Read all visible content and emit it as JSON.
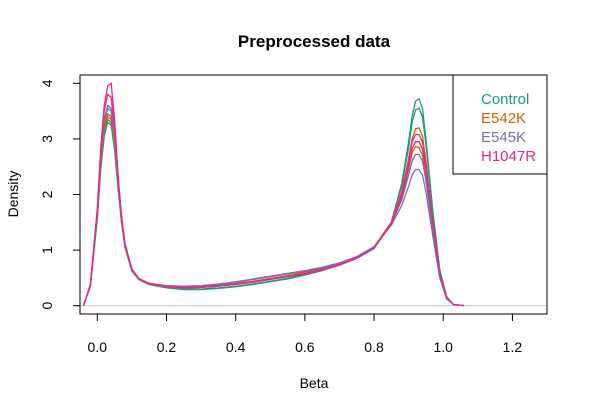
{
  "chart_data": {
    "type": "line",
    "title": "Preprocessed data",
    "xlabel": "Beta",
    "ylabel": "Density",
    "xlim": [
      -0.05,
      1.3
    ],
    "ylim": [
      -0.15,
      4.15
    ],
    "xticks": [
      0.0,
      0.2,
      0.4,
      0.6,
      0.8,
      1.0,
      1.2
    ],
    "xtick_labels": [
      "0.0",
      "0.2",
      "0.4",
      "0.6",
      "0.8",
      "1.0",
      "1.2"
    ],
    "yticks": [
      0,
      1,
      2,
      3,
      4
    ],
    "ytick_labels": [
      "0",
      "1",
      "2",
      "3",
      "4"
    ],
    "grid": false,
    "baseline": 0,
    "legend_position": "top-right",
    "legend": [
      {
        "label": "Control",
        "color": "#1B9E77"
      },
      {
        "label": "E542K",
        "color": "#D95F02"
      },
      {
        "label": "E545K",
        "color": "#7570B3"
      },
      {
        "label": "H1047R",
        "color": "#E7298A"
      }
    ],
    "x": [
      -0.04,
      -0.02,
      0.0,
      0.01,
      0.02,
      0.03,
      0.04,
      0.05,
      0.06,
      0.07,
      0.08,
      0.1,
      0.12,
      0.15,
      0.2,
      0.25,
      0.3,
      0.35,
      0.4,
      0.45,
      0.5,
      0.55,
      0.6,
      0.65,
      0.7,
      0.75,
      0.8,
      0.85,
      0.88,
      0.9,
      0.91,
      0.92,
      0.93,
      0.94,
      0.95,
      0.97,
      0.99,
      1.01,
      1.03,
      1.06
    ],
    "series": [
      {
        "color": "#1B9E77",
        "values": [
          0.0,
          0.35,
          1.55,
          2.45,
          3.05,
          3.3,
          3.25,
          2.8,
          2.1,
          1.5,
          1.05,
          0.62,
          0.47,
          0.38,
          0.32,
          0.29,
          0.29,
          0.31,
          0.34,
          0.38,
          0.43,
          0.48,
          0.55,
          0.63,
          0.73,
          0.85,
          1.03,
          1.5,
          2.2,
          2.95,
          3.4,
          3.68,
          3.72,
          3.55,
          3.0,
          1.7,
          0.65,
          0.16,
          0.02,
          0.0
        ]
      },
      {
        "color": "#1B9E77",
        "values": [
          0.0,
          0.35,
          1.6,
          2.5,
          3.1,
          3.35,
          3.3,
          2.85,
          2.15,
          1.52,
          1.06,
          0.63,
          0.47,
          0.38,
          0.33,
          0.3,
          0.3,
          0.32,
          0.35,
          0.39,
          0.44,
          0.49,
          0.56,
          0.64,
          0.74,
          0.86,
          1.04,
          1.5,
          2.15,
          2.85,
          3.3,
          3.52,
          3.55,
          3.4,
          2.9,
          1.65,
          0.63,
          0.15,
          0.02,
          0.0
        ]
      },
      {
        "color": "#D95F02",
        "values": [
          0.0,
          0.36,
          1.65,
          2.6,
          3.2,
          3.45,
          3.4,
          2.95,
          2.2,
          1.55,
          1.08,
          0.64,
          0.48,
          0.39,
          0.34,
          0.32,
          0.33,
          0.36,
          0.4,
          0.44,
          0.49,
          0.54,
          0.6,
          0.67,
          0.76,
          0.88,
          1.06,
          1.5,
          2.05,
          2.65,
          3.0,
          3.18,
          3.2,
          3.05,
          2.6,
          1.5,
          0.58,
          0.14,
          0.02,
          0.0
        ]
      },
      {
        "color": "#D95F02",
        "values": [
          0.0,
          0.36,
          1.6,
          2.55,
          3.15,
          3.4,
          3.35,
          2.9,
          2.18,
          1.53,
          1.07,
          0.63,
          0.47,
          0.39,
          0.34,
          0.32,
          0.33,
          0.35,
          0.39,
          0.43,
          0.48,
          0.53,
          0.59,
          0.66,
          0.75,
          0.87,
          1.05,
          1.48,
          1.95,
          2.45,
          2.75,
          2.86,
          2.85,
          2.7,
          2.3,
          1.35,
          0.53,
          0.13,
          0.02,
          0.0
        ]
      },
      {
        "color": "#7570B3",
        "values": [
          0.0,
          0.37,
          1.7,
          2.7,
          3.35,
          3.6,
          3.55,
          3.05,
          2.25,
          1.58,
          1.1,
          0.65,
          0.49,
          0.4,
          0.36,
          0.35,
          0.36,
          0.39,
          0.43,
          0.48,
          0.53,
          0.58,
          0.63,
          0.69,
          0.77,
          0.88,
          1.06,
          1.45,
          1.8,
          2.15,
          2.35,
          2.45,
          2.45,
          2.35,
          2.05,
          1.25,
          0.5,
          0.12,
          0.02,
          0.0
        ]
      },
      {
        "color": "#7570B3",
        "values": [
          0.0,
          0.36,
          1.65,
          2.65,
          3.3,
          3.55,
          3.5,
          3.0,
          2.22,
          1.56,
          1.09,
          0.64,
          0.48,
          0.4,
          0.35,
          0.34,
          0.35,
          0.38,
          0.42,
          0.47,
          0.52,
          0.57,
          0.62,
          0.68,
          0.76,
          0.87,
          1.05,
          1.47,
          1.9,
          2.35,
          2.6,
          2.72,
          2.72,
          2.6,
          2.25,
          1.35,
          0.53,
          0.13,
          0.02,
          0.0
        ]
      },
      {
        "color": "#E7298A",
        "values": [
          0.0,
          0.38,
          1.75,
          2.85,
          3.6,
          3.95,
          4.0,
          3.35,
          2.35,
          1.62,
          1.12,
          0.66,
          0.49,
          0.4,
          0.35,
          0.33,
          0.34,
          0.36,
          0.39,
          0.43,
          0.48,
          0.52,
          0.58,
          0.65,
          0.74,
          0.86,
          1.04,
          1.48,
          2.0,
          2.6,
          2.95,
          3.08,
          3.08,
          2.95,
          2.55,
          1.5,
          0.58,
          0.14,
          0.02,
          0.0
        ]
      },
      {
        "color": "#E7298A",
        "values": [
          0.0,
          0.37,
          1.72,
          2.8,
          3.5,
          3.8,
          3.75,
          3.2,
          2.3,
          1.6,
          1.1,
          0.65,
          0.48,
          0.4,
          0.34,
          0.32,
          0.33,
          0.35,
          0.38,
          0.42,
          0.47,
          0.52,
          0.57,
          0.64,
          0.73,
          0.85,
          1.03,
          1.47,
          1.95,
          2.5,
          2.82,
          2.95,
          2.95,
          2.82,
          2.45,
          1.45,
          0.56,
          0.14,
          0.02,
          0.0
        ]
      }
    ]
  }
}
